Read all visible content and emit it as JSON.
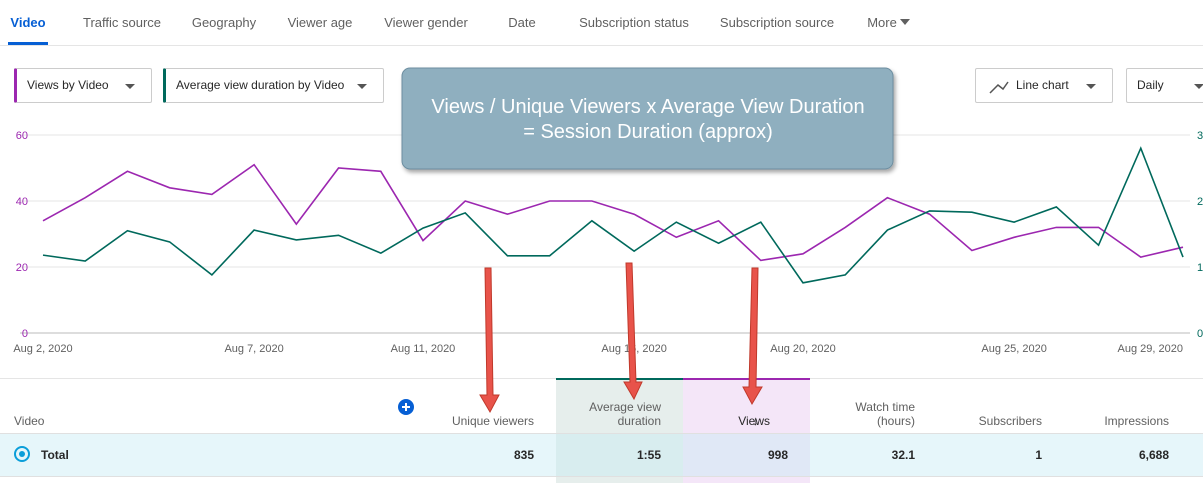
{
  "tabs": [
    "Video",
    "Traffic source",
    "Geography",
    "Viewer age",
    "Viewer gender",
    "Date",
    "Subscription status",
    "Subscription source",
    "More"
  ],
  "controls": {
    "metric1": "Views by Video",
    "metric2": "Average view duration by Video",
    "chart_type": "Line chart",
    "interval": "Daily"
  },
  "callout": [
    "Views / Unique Viewers x Average View Duration",
    "= Session Duration (approx)"
  ],
  "chart_data": {
    "type": "line",
    "x": [
      "Aug 2, 2020",
      null,
      null,
      null,
      null,
      "Aug 7, 2020",
      null,
      null,
      null,
      "Aug 11, 2020",
      null,
      null,
      null,
      null,
      "Aug 16, 2020",
      null,
      null,
      null,
      "Aug 20, 2020",
      null,
      null,
      null,
      null,
      "Aug 25, 2020",
      null,
      null,
      null,
      "Aug 29, 2020"
    ],
    "series": [
      {
        "color": "#9c27b0",
        "values": [
          34,
          41,
          49,
          44,
          42,
          51,
          33,
          50,
          49,
          28,
          40,
          36,
          40,
          40,
          36,
          29,
          34,
          22,
          24,
          32,
          41,
          36,
          25,
          29,
          32,
          32,
          23,
          26
        ]
      },
      {
        "color": "#00695c",
        "axis": "y2",
        "values": [
          1.18,
          1.09,
          1.55,
          1.38,
          0.88,
          1.56,
          1.41,
          1.48,
          1.21,
          1.59,
          1.82,
          1.17,
          1.17,
          1.7,
          1.24,
          1.68,
          1.36,
          1.68,
          0.76,
          0.88,
          1.56,
          1.85,
          1.83,
          1.68,
          1.91,
          1.33,
          2.8,
          1.15
        ]
      }
    ],
    "ylim": [
      0,
      60
    ],
    "yticks": [
      0,
      20,
      40,
      60
    ],
    "y2lim": [
      0,
      3
    ],
    "y2ticks": [
      0,
      1,
      2,
      3
    ],
    "grid": true
  },
  "table": {
    "headers": [
      "Video",
      "Unique viewers",
      "Average view duration",
      "Views",
      "Watch time (hours)",
      "Subscribers",
      "Impressions"
    ],
    "rows": [
      [
        "Total",
        "835",
        "1:55",
        "998",
        "32.1",
        "1",
        "6,688"
      ]
    ]
  }
}
